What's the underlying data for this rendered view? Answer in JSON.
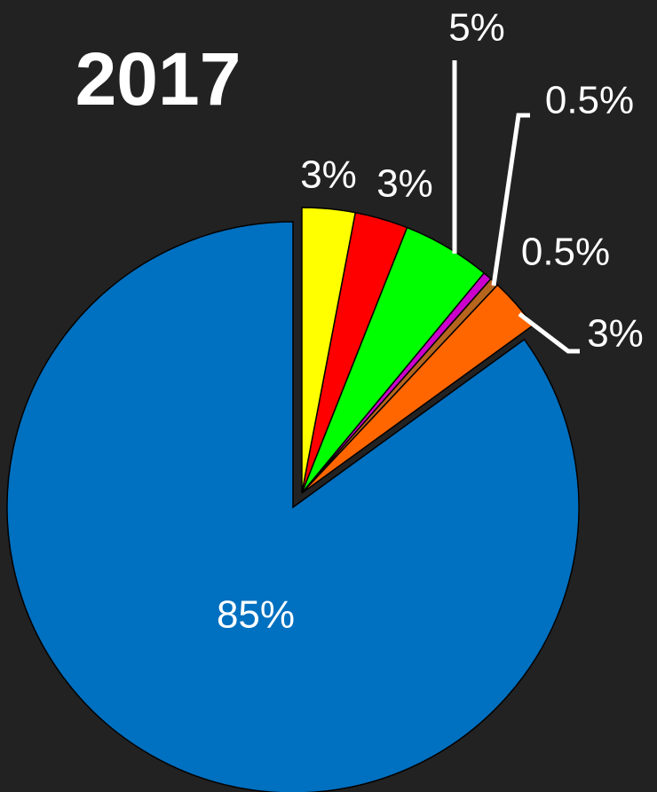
{
  "chart_data": {
    "type": "pie",
    "title": "2017",
    "categories": [
      null,
      null,
      null,
      null,
      null,
      null,
      null
    ],
    "values": [
      3,
      3,
      5,
      0.5,
      0.5,
      3,
      85
    ],
    "value_labels": [
      "3%",
      "3%",
      "5%",
      "0.5%",
      "0.5%",
      "3%",
      "85%"
    ],
    "colors": [
      "#ffff00",
      "#ff0000",
      "#00ff00",
      "#cc00cc",
      "#b5651d",
      "#ff6600",
      "#0070c0"
    ]
  }
}
